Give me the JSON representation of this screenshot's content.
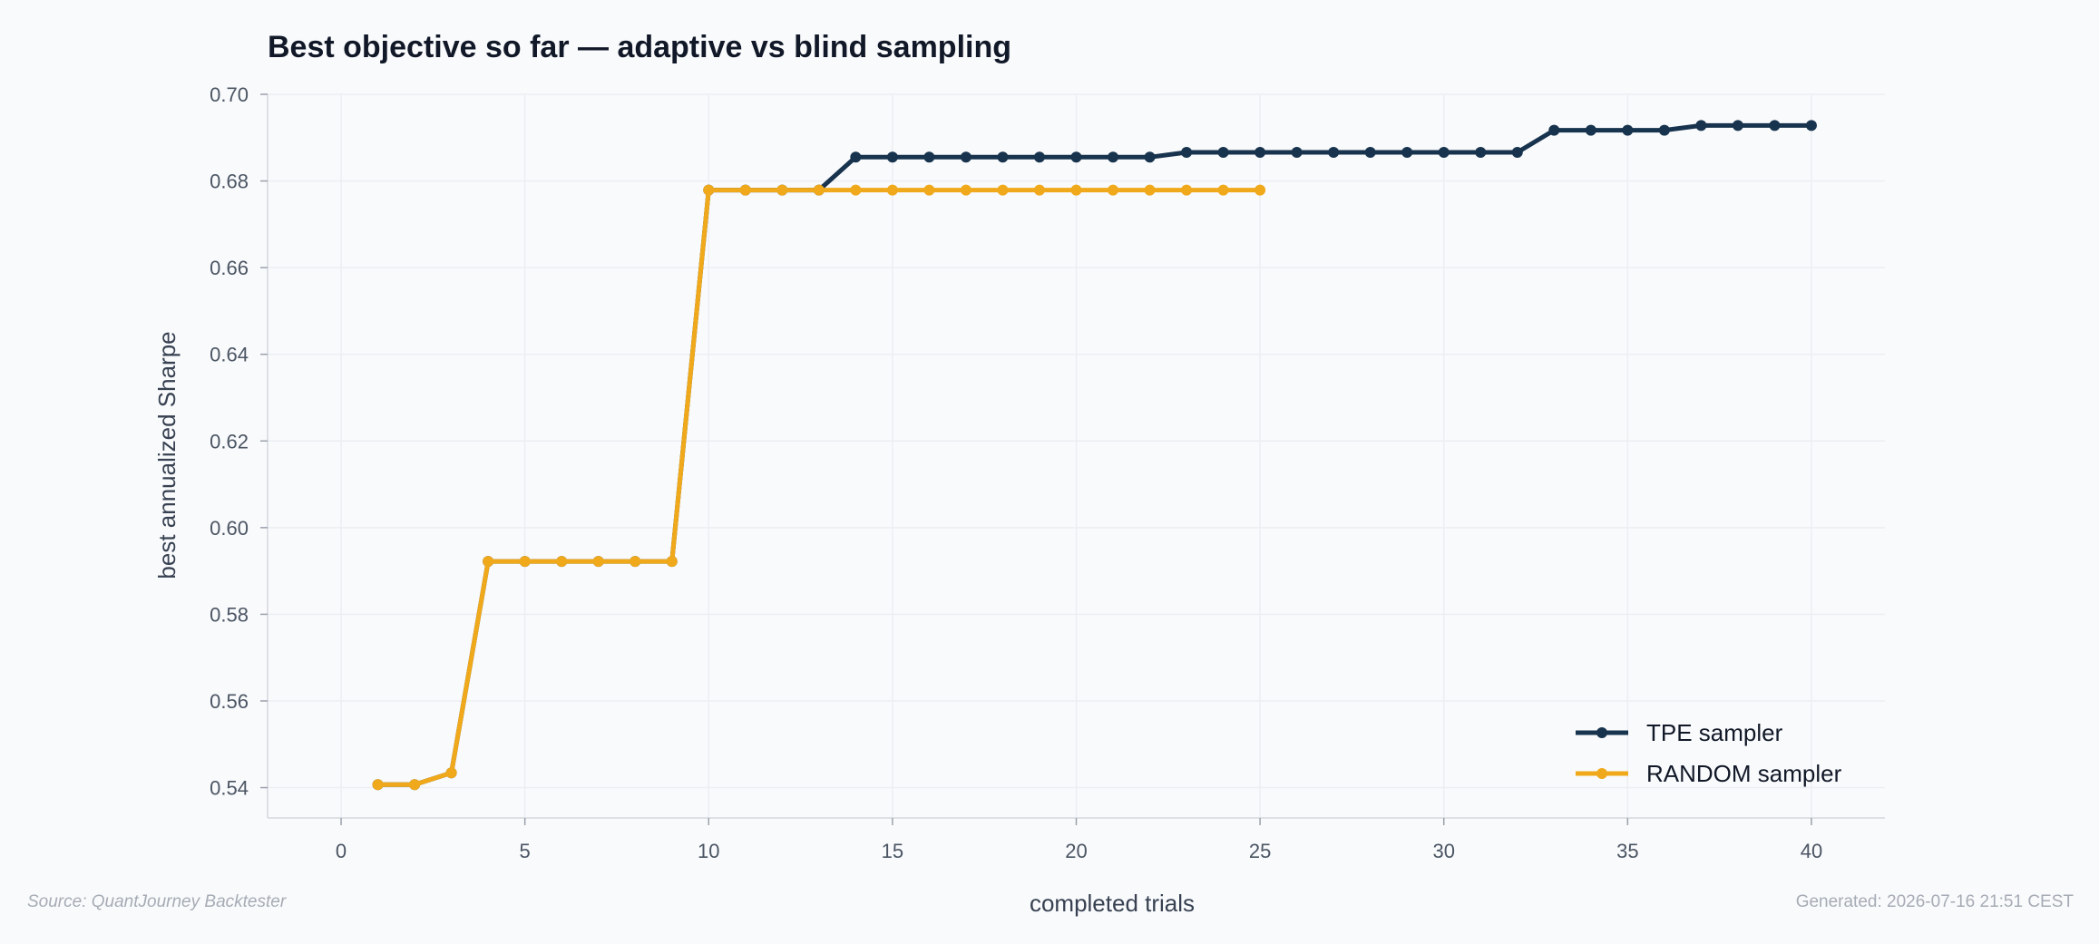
{
  "chart_data": {
    "type": "line",
    "title": "Best objective so far — adaptive vs blind sampling",
    "xlabel": "completed trials",
    "ylabel": "best annualized Sharpe",
    "xlim": [
      -2,
      42
    ],
    "ylim": [
      0.533,
      0.7
    ],
    "x_ticks": [
      0,
      5,
      10,
      15,
      20,
      25,
      30,
      35,
      40
    ],
    "y_ticks": [
      0.54,
      0.56,
      0.58,
      0.6,
      0.62,
      0.64,
      0.66,
      0.68,
      0.7
    ],
    "grid": true,
    "legend_position": "bottom-right",
    "series": [
      {
        "name": "TPE sampler",
        "color": "#17334d",
        "x": [
          1,
          2,
          3,
          4,
          5,
          6,
          7,
          8,
          9,
          10,
          11,
          12,
          13,
          14,
          15,
          16,
          17,
          18,
          19,
          20,
          21,
          22,
          23,
          24,
          25,
          26,
          27,
          28,
          29,
          30,
          31,
          32,
          33,
          34,
          35,
          36,
          37,
          38,
          39,
          40
        ],
        "y": [
          0.5407,
          0.5407,
          0.5434,
          0.5922,
          0.5922,
          0.5922,
          0.5922,
          0.5922,
          0.5922,
          0.6779,
          0.6779,
          0.6779,
          0.6779,
          0.6855,
          0.6855,
          0.6855,
          0.6855,
          0.6855,
          0.6855,
          0.6855,
          0.6855,
          0.6855,
          0.6866,
          0.6866,
          0.6866,
          0.6866,
          0.6866,
          0.6866,
          0.6866,
          0.6866,
          0.6866,
          0.6866,
          0.6917,
          0.6917,
          0.6917,
          0.6917,
          0.6928,
          0.6928,
          0.6928,
          0.6928
        ]
      },
      {
        "name": "RANDOM sampler",
        "color": "#f0a91b",
        "x": [
          1,
          2,
          3,
          4,
          5,
          6,
          7,
          8,
          9,
          10,
          11,
          12,
          13,
          14,
          15,
          16,
          17,
          18,
          19,
          20,
          21,
          22,
          23,
          24,
          25
        ],
        "y": [
          0.5407,
          0.5407,
          0.5434,
          0.5922,
          0.5922,
          0.5922,
          0.5922,
          0.5922,
          0.5922,
          0.6779,
          0.6779,
          0.6779,
          0.6779,
          0.6779,
          0.6779,
          0.6779,
          0.6779,
          0.6779,
          0.6779,
          0.6779,
          0.6779,
          0.6779,
          0.6779,
          0.6779,
          0.6779
        ]
      }
    ]
  },
  "footer": {
    "source": "Source: QuantJourney Backtester",
    "generated": "Generated: 2026-07-16 21:51 CEST"
  }
}
